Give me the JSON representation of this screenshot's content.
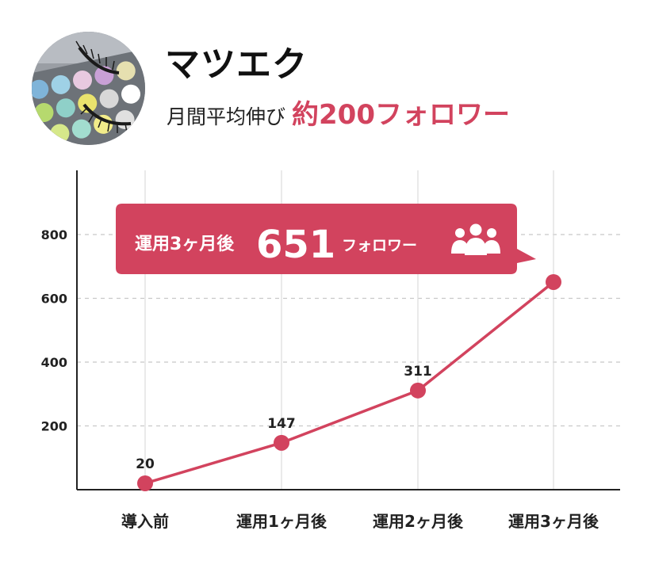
{
  "header": {
    "title": "マツエク",
    "subtitle_lead": "月間平均伸び",
    "subtitle_highlight": "約200フォロワー"
  },
  "callout": {
    "prefix": "運用3ヶ月後",
    "number": "651",
    "suffix": "フォロワー",
    "icon": "users-icon"
  },
  "colors": {
    "accent": "#d2435e",
    "grid": "#c8c8c8",
    "axis": "#222222"
  },
  "chart_data": {
    "type": "line",
    "categories": [
      "導入前",
      "運用1ヶ月後",
      "運用2ヶ月後",
      "運用3ヶ月後"
    ],
    "values": [
      20,
      147,
      311,
      651
    ],
    "data_labels": [
      "20",
      "147",
      "311",
      ""
    ],
    "y_ticks": [
      200,
      400,
      600,
      800
    ],
    "ylim": [
      0,
      1000
    ],
    "grid": true,
    "title": "",
    "xlabel": "",
    "ylabel": ""
  }
}
